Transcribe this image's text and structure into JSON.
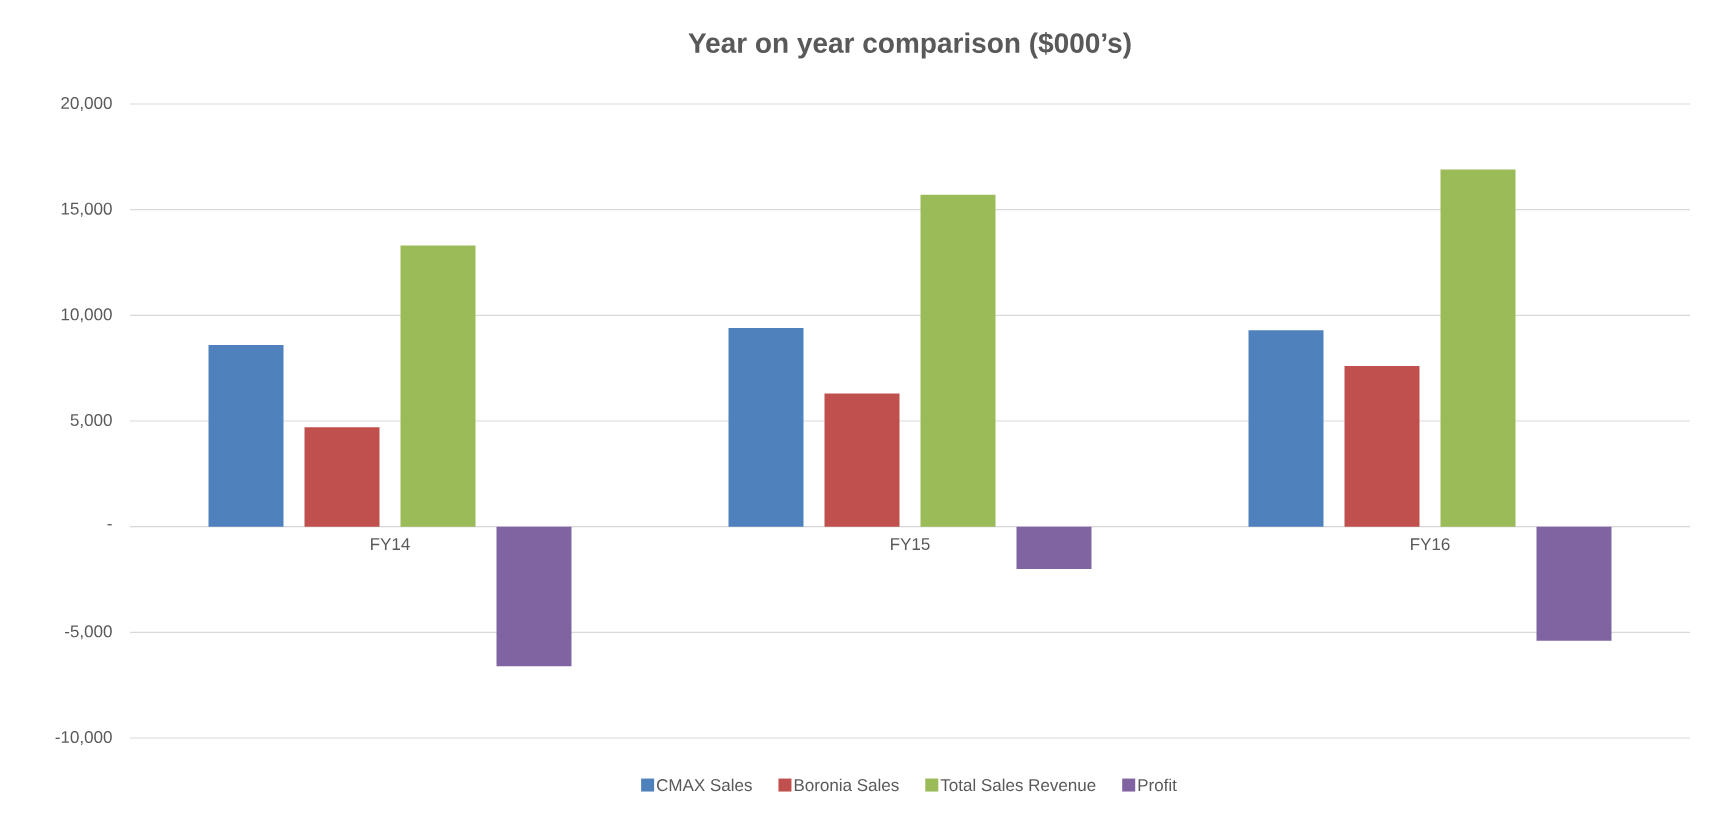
{
  "chart_data": {
    "type": "bar",
    "title": "Year on year comparison ($000’s)",
    "categories": [
      "FY14",
      "FY15",
      "FY16"
    ],
    "series": [
      {
        "name": "CMAX Sales",
        "color": "#4f81bd",
        "values": [
          8600,
          9400,
          9300
        ]
      },
      {
        "name": "Boronia Sales",
        "color": "#c0504d",
        "values": [
          4700,
          6300,
          7600
        ]
      },
      {
        "name": "Total Sales Revenue",
        "color": "#9bbb59",
        "values": [
          13300,
          15700,
          16900
        ]
      },
      {
        "name": "Profit",
        "color": "#8064a2",
        "values": [
          -6600,
          -2000,
          -5400
        ]
      }
    ],
    "ylim": [
      -10000,
      20000
    ],
    "yticks": [
      {
        "value": -10000,
        "label": "-10,000"
      },
      {
        "value": -5000,
        "label": "-5,000"
      },
      {
        "value": 0,
        "label": "-"
      },
      {
        "value": 5000,
        "label": "5,000"
      },
      {
        "value": 10000,
        "label": "10,000"
      },
      {
        "value": 15000,
        "label": "15,000"
      },
      {
        "value": 20000,
        "label": "20,000"
      }
    ],
    "grid": "y",
    "legend": "bottom"
  }
}
